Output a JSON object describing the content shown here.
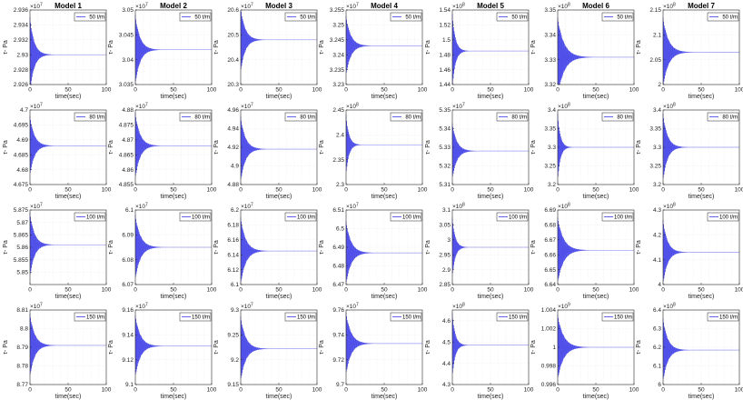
{
  "chart_data": {
    "type": "line",
    "legend_location": "top-right",
    "grid": true,
    "line_color": "#3a3ae6",
    "models": [
      "Model 1",
      "Model 2",
      "Model 3",
      "Model 4",
      "Model 5",
      "Model 6",
      "Model 7"
    ],
    "rows": [
      {
        "legend": "50 t/m",
        "panels": [
          {
            "title": "Model 1",
            "ylabel": "τ- Pa",
            "xlabel": "time(sec)",
            "xlim": [
              0,
              100
            ],
            "xticks": [
              "0",
              "50",
              "100"
            ],
            "exponent": "7",
            "ylim": [
              2.926,
              2.936
            ],
            "yticks": [
              "2.926",
              "2.928",
              "2.93",
              "2.932",
              "2.934",
              "2.936"
            ],
            "steady": 2.93,
            "amp": 0.005,
            "decay": 0.18,
            "period": 0.8
          },
          {
            "title": "Model 2",
            "ylabel": "τ- Pa",
            "xlabel": "time(sec)",
            "xlim": [
              0,
              100
            ],
            "xticks": [
              "0",
              "50",
              "100"
            ],
            "exponent": "7",
            "ylim": [
              3.035,
              3.05
            ],
            "yticks": [
              "3.035",
              "3.04",
              "3.045",
              "3.05"
            ],
            "steady": 3.042,
            "amp": 0.007,
            "decay": 0.16,
            "period": 0.8
          },
          {
            "title": "Model 3",
            "ylabel": "τ- Pa",
            "xlabel": "time(sec)",
            "xlim": [
              0,
              100
            ],
            "xticks": [
              "0",
              "50",
              "100"
            ],
            "exponent": "7",
            "ylim": [
              20.3,
              20.6
            ],
            "yticks": [
              "20.3",
              "20.4",
              "20.5",
              "20.6"
            ],
            "steady": 20.48,
            "amp": 0.13,
            "decay": 0.17,
            "period": 0.8
          },
          {
            "title": "Model 4",
            "ylabel": "τ- Pa",
            "xlabel": "time(sec)",
            "xlim": [
              0,
              100
            ],
            "xticks": [
              "0",
              "50",
              "100"
            ],
            "exponent": "7",
            "ylim": [
              3.23,
              3.255
            ],
            "yticks": [
              "3.23",
              "3.235",
              "3.24",
              "3.245",
              "3.25",
              "3.255"
            ],
            "steady": 3.243,
            "amp": 0.01,
            "decay": 0.16,
            "period": 0.8
          },
          {
            "title": "Model 5",
            "ylabel": "τ- Pa",
            "xlabel": "time(sec)",
            "xlim": [
              0,
              100
            ],
            "xticks": [
              "0",
              "50",
              "100"
            ],
            "exponent": "8",
            "ylim": [
              1.44,
              1.54
            ],
            "yticks": [
              "1.44",
              "1.46",
              "1.48",
              "1.5",
              "1.52",
              "1.54"
            ],
            "steady": 1.485,
            "amp": 0.05,
            "decay": 0.25,
            "period": 0.8
          },
          {
            "title": "Model 6",
            "ylabel": "τ- Pa",
            "xlabel": "time(sec)",
            "xlim": [
              0,
              100
            ],
            "xticks": [
              "0",
              "50",
              "100"
            ],
            "exponent": "8",
            "ylim": [
              3.32,
              3.35
            ],
            "yticks": [
              "3.32",
              "3.33",
              "3.34",
              "3.35"
            ],
            "steady": 3.331,
            "amp": 0.016,
            "decay": 0.12,
            "period": 0.8
          },
          {
            "title": "Model 7",
            "ylabel": "τ- Pa",
            "xlabel": "time(sec)",
            "xlim": [
              0,
              100
            ],
            "xticks": [
              "0",
              "50",
              "100"
            ],
            "exponent": "8",
            "ylim": [
              2,
              2.15
            ],
            "yticks": [
              "2",
              "2.05",
              "2.1",
              "2.15"
            ],
            "steady": 2.065,
            "amp": 0.07,
            "decay": 0.14,
            "period": 0.8
          }
        ]
      },
      {
        "legend": "80 t/m",
        "panels": [
          {
            "title": "",
            "ylabel": "τ- Pa",
            "xlabel": "time(sec)",
            "xlim": [
              0,
              100
            ],
            "xticks": [
              "0",
              "50",
              "100"
            ],
            "exponent": "7",
            "ylim": [
              4.675,
              4.7
            ],
            "yticks": [
              "4.675",
              "4.68",
              "4.685",
              "4.69",
              "4.695",
              "4.7"
            ],
            "steady": 4.688,
            "amp": 0.01,
            "decay": 0.17,
            "period": 0.8
          },
          {
            "title": "",
            "ylabel": "τ- Pa",
            "xlabel": "time(sec)",
            "xlim": [
              0,
              100
            ],
            "xticks": [
              "0",
              "50",
              "100"
            ],
            "exponent": "7",
            "ylim": [
              4.855,
              4.88
            ],
            "yticks": [
              "4.855",
              "4.86",
              "4.865",
              "4.87",
              "4.875",
              "4.88"
            ],
            "steady": 4.868,
            "amp": 0.011,
            "decay": 0.16,
            "period": 0.8
          },
          {
            "title": "",
            "ylabel": "τ- Pa",
            "xlabel": "time(sec)",
            "xlim": [
              0,
              100
            ],
            "xticks": [
              "0",
              "50",
              "100"
            ],
            "exponent": "7",
            "ylim": [
              4.88,
              4.96
            ],
            "yticks": [
              "4.88",
              "4.9",
              "4.92",
              "4.94",
              "4.96"
            ],
            "steady": 4.918,
            "amp": 0.035,
            "decay": 0.16,
            "period": 0.8
          },
          {
            "title": "",
            "ylabel": "τ- Pa",
            "xlabel": "time(sec)",
            "xlim": [
              0,
              100
            ],
            "xticks": [
              "0",
              "50",
              "100"
            ],
            "exponent": "8",
            "ylim": [
              2.3,
              2.45
            ],
            "yticks": [
              "2.3",
              "2.35",
              "2.4",
              "2.45"
            ],
            "steady": 2.38,
            "amp": 0.06,
            "decay": 0.26,
            "period": 0.8
          },
          {
            "title": "",
            "ylabel": "τ- Pa",
            "xlabel": "time(sec)",
            "xlim": [
              0,
              100
            ],
            "xticks": [
              "0",
              "50",
              "100"
            ],
            "exponent": "7",
            "ylim": [
              5.31,
              5.35
            ],
            "yticks": [
              "5.31",
              "5.32",
              "5.33",
              "5.34",
              "5.35"
            ],
            "steady": 5.328,
            "amp": 0.015,
            "decay": 0.17,
            "period": 0.8
          },
          {
            "title": "",
            "ylabel": "τ- Pa",
            "xlabel": "time(sec)",
            "xlim": [
              0,
              100
            ],
            "xticks": [
              "0",
              "50",
              "100"
            ],
            "exponent": "8",
            "ylim": [
              3.2,
              3.4
            ],
            "yticks": [
              "3.2",
              "3.25",
              "3.3",
              "3.35",
              "3.4"
            ],
            "steady": 3.3,
            "amp": 0.09,
            "decay": 0.28,
            "period": 0.8
          },
          {
            "title": "",
            "ylabel": "τ- Pa",
            "xlabel": "time(sec)",
            "xlim": [
              0,
              100
            ],
            "xticks": [
              "0",
              "50",
              "100"
            ],
            "exponent": "8",
            "ylim": [
              3.2,
              3.4
            ],
            "yticks": [
              "3.2",
              "3.25",
              "3.3",
              "3.35",
              "3.4"
            ],
            "steady": 3.3,
            "amp": 0.09,
            "decay": 0.17,
            "period": 0.8
          }
        ]
      },
      {
        "legend": "100 t/m",
        "panels": [
          {
            "title": "",
            "ylabel": "τ- Pa",
            "xlabel": "time(sec)",
            "xlim": [
              0,
              100
            ],
            "xticks": [
              "0",
              "50",
              "100"
            ],
            "exponent": "7",
            "ylim": [
              5.845,
              5.875
            ],
            "yticks": [
              "5.85",
              "5.855",
              "5.86",
              "5.865",
              "5.87",
              "5.875"
            ],
            "steady": 5.861,
            "amp": 0.013,
            "decay": 0.17,
            "period": 0.8
          },
          {
            "title": "",
            "ylabel": "τ- Pa",
            "xlabel": "time(sec)",
            "xlim": [
              0,
              100
            ],
            "xticks": [
              "0",
              "50",
              "100"
            ],
            "exponent": "7",
            "ylim": [
              6.07,
              6.1
            ],
            "yticks": [
              "6.07",
              "6.08",
              "6.09",
              "6.1"
            ],
            "steady": 6.085,
            "amp": 0.013,
            "decay": 0.15,
            "period": 0.8
          },
          {
            "title": "",
            "ylabel": "τ- Pa",
            "xlabel": "time(sec)",
            "xlim": [
              0,
              100
            ],
            "xticks": [
              "0",
              "50",
              "100"
            ],
            "exponent": "7",
            "ylim": [
              6.1,
              6.2
            ],
            "yticks": [
              "6.1",
              "6.12",
              "6.14",
              "6.16",
              "6.18",
              "6.2"
            ],
            "steady": 6.145,
            "amp": 0.045,
            "decay": 0.15,
            "period": 0.8
          },
          {
            "title": "",
            "ylabel": "τ- Pa",
            "xlabel": "time(sec)",
            "xlim": [
              0,
              100
            ],
            "xticks": [
              "0",
              "50",
              "100"
            ],
            "exponent": "7",
            "ylim": [
              6.47,
              6.51
            ],
            "yticks": [
              "6.47",
              "6.48",
              "6.49",
              "6.5",
              "6.51"
            ],
            "steady": 6.487,
            "amp": 0.017,
            "decay": 0.15,
            "period": 0.8
          },
          {
            "title": "",
            "ylabel": "τ- Pa",
            "xlabel": "time(sec)",
            "xlim": [
              0,
              100
            ],
            "xticks": [
              "0",
              "50",
              "100"
            ],
            "exponent": "8",
            "ylim": [
              2.85,
              3.1
            ],
            "yticks": [
              "2.85",
              "2.9",
              "2.95",
              "3",
              "3.05",
              "3.1"
            ],
            "steady": 2.975,
            "amp": 0.1,
            "decay": 0.26,
            "period": 0.8
          },
          {
            "title": "",
            "ylabel": "τ- Pa",
            "xlabel": "time(sec)",
            "xlim": [
              0,
              100
            ],
            "xticks": [
              "0",
              "50",
              "100"
            ],
            "exponent": "8",
            "ylim": [
              6.64,
              6.69
            ],
            "yticks": [
              "6.64",
              "6.65",
              "6.66",
              "6.67",
              "6.68",
              "6.69"
            ],
            "steady": 6.663,
            "amp": 0.022,
            "decay": 0.13,
            "period": 0.8
          },
          {
            "title": "",
            "ylabel": "τ- Pa",
            "xlabel": "time(sec)",
            "xlim": [
              0,
              100
            ],
            "xticks": [
              "0",
              "50",
              "100"
            ],
            "exponent": "8",
            "ylim": [
              4,
              4.3
            ],
            "yticks": [
              "4",
              "4.1",
              "4.2",
              "4.3"
            ],
            "steady": 4.13,
            "amp": 0.13,
            "decay": 0.17,
            "period": 0.8
          }
        ]
      },
      {
        "legend": "150 t/m",
        "panels": [
          {
            "title": "",
            "ylabel": "τ- Pa",
            "xlabel": "time(sec)",
            "xlim": [
              0,
              100
            ],
            "xticks": [
              "0",
              "50",
              "100"
            ],
            "exponent": "7",
            "ylim": [
              8.77,
              8.81
            ],
            "yticks": [
              "8.77",
              "8.78",
              "8.79",
              "8.8",
              "8.81"
            ],
            "steady": 8.791,
            "amp": 0.017,
            "decay": 0.16,
            "period": 0.8
          },
          {
            "title": "",
            "ylabel": "τ- Pa",
            "xlabel": "time(sec)",
            "xlim": [
              0,
              100
            ],
            "xticks": [
              "0",
              "50",
              "100"
            ],
            "exponent": "7",
            "ylim": [
              9.1,
              9.16
            ],
            "yticks": [
              "9.1",
              "9.12",
              "9.14",
              "9.16"
            ],
            "steady": 9.131,
            "amp": 0.025,
            "decay": 0.15,
            "period": 0.8
          },
          {
            "title": "",
            "ylabel": "τ- Pa",
            "xlabel": "time(sec)",
            "xlim": [
              0,
              100
            ],
            "xticks": [
              "0",
              "50",
              "100"
            ],
            "exponent": "7",
            "ylim": [
              9.15,
              9.3
            ],
            "yticks": [
              "9.15",
              "9.2",
              "9.25",
              "9.3"
            ],
            "steady": 9.222,
            "amp": 0.065,
            "decay": 0.15,
            "period": 0.8
          },
          {
            "title": "",
            "ylabel": "τ- Pa",
            "xlabel": "time(sec)",
            "xlim": [
              0,
              100
            ],
            "xticks": [
              "0",
              "50",
              "100"
            ],
            "exponent": "7",
            "ylim": [
              9.7,
              9.76
            ],
            "yticks": [
              "9.7",
              "9.72",
              "9.74",
              "9.76"
            ],
            "steady": 9.733,
            "amp": 0.025,
            "decay": 0.15,
            "period": 0.8
          },
          {
            "title": "",
            "ylabel": "τ- Pa",
            "xlabel": "time(sec)",
            "xlim": [
              0,
              100
            ],
            "xticks": [
              "0",
              "50",
              "100"
            ],
            "exponent": "8",
            "ylim": [
              4.3,
              4.65
            ],
            "yticks": [
              "4.3",
              "4.4",
              "4.5",
              "4.6"
            ],
            "steady": 4.485,
            "amp": 0.15,
            "decay": 0.26,
            "period": 0.8
          },
          {
            "title": "",
            "ylabel": "τ- Pa",
            "xlabel": "time(sec)",
            "xlim": [
              0,
              100
            ],
            "xticks": [
              "0",
              "50",
              "100"
            ],
            "exponent": "9",
            "ylim": [
              0.996,
              1.004
            ],
            "yticks": [
              "0.996",
              "0.998",
              "1",
              "1.002",
              "1.004"
            ],
            "steady": 1.0,
            "amp": 0.0035,
            "decay": 0.13,
            "period": 0.8
          },
          {
            "title": "",
            "ylabel": "τ- Pa",
            "xlabel": "time(sec)",
            "xlim": [
              0,
              100
            ],
            "xticks": [
              "0",
              "50",
              "100"
            ],
            "exponent": "8",
            "ylim": [
              6,
              6.4
            ],
            "yticks": [
              "6",
              "6.1",
              "6.2",
              "6.3",
              "6.4"
            ],
            "steady": 6.185,
            "amp": 0.17,
            "decay": 0.16,
            "period": 0.8
          }
        ]
      }
    ]
  }
}
